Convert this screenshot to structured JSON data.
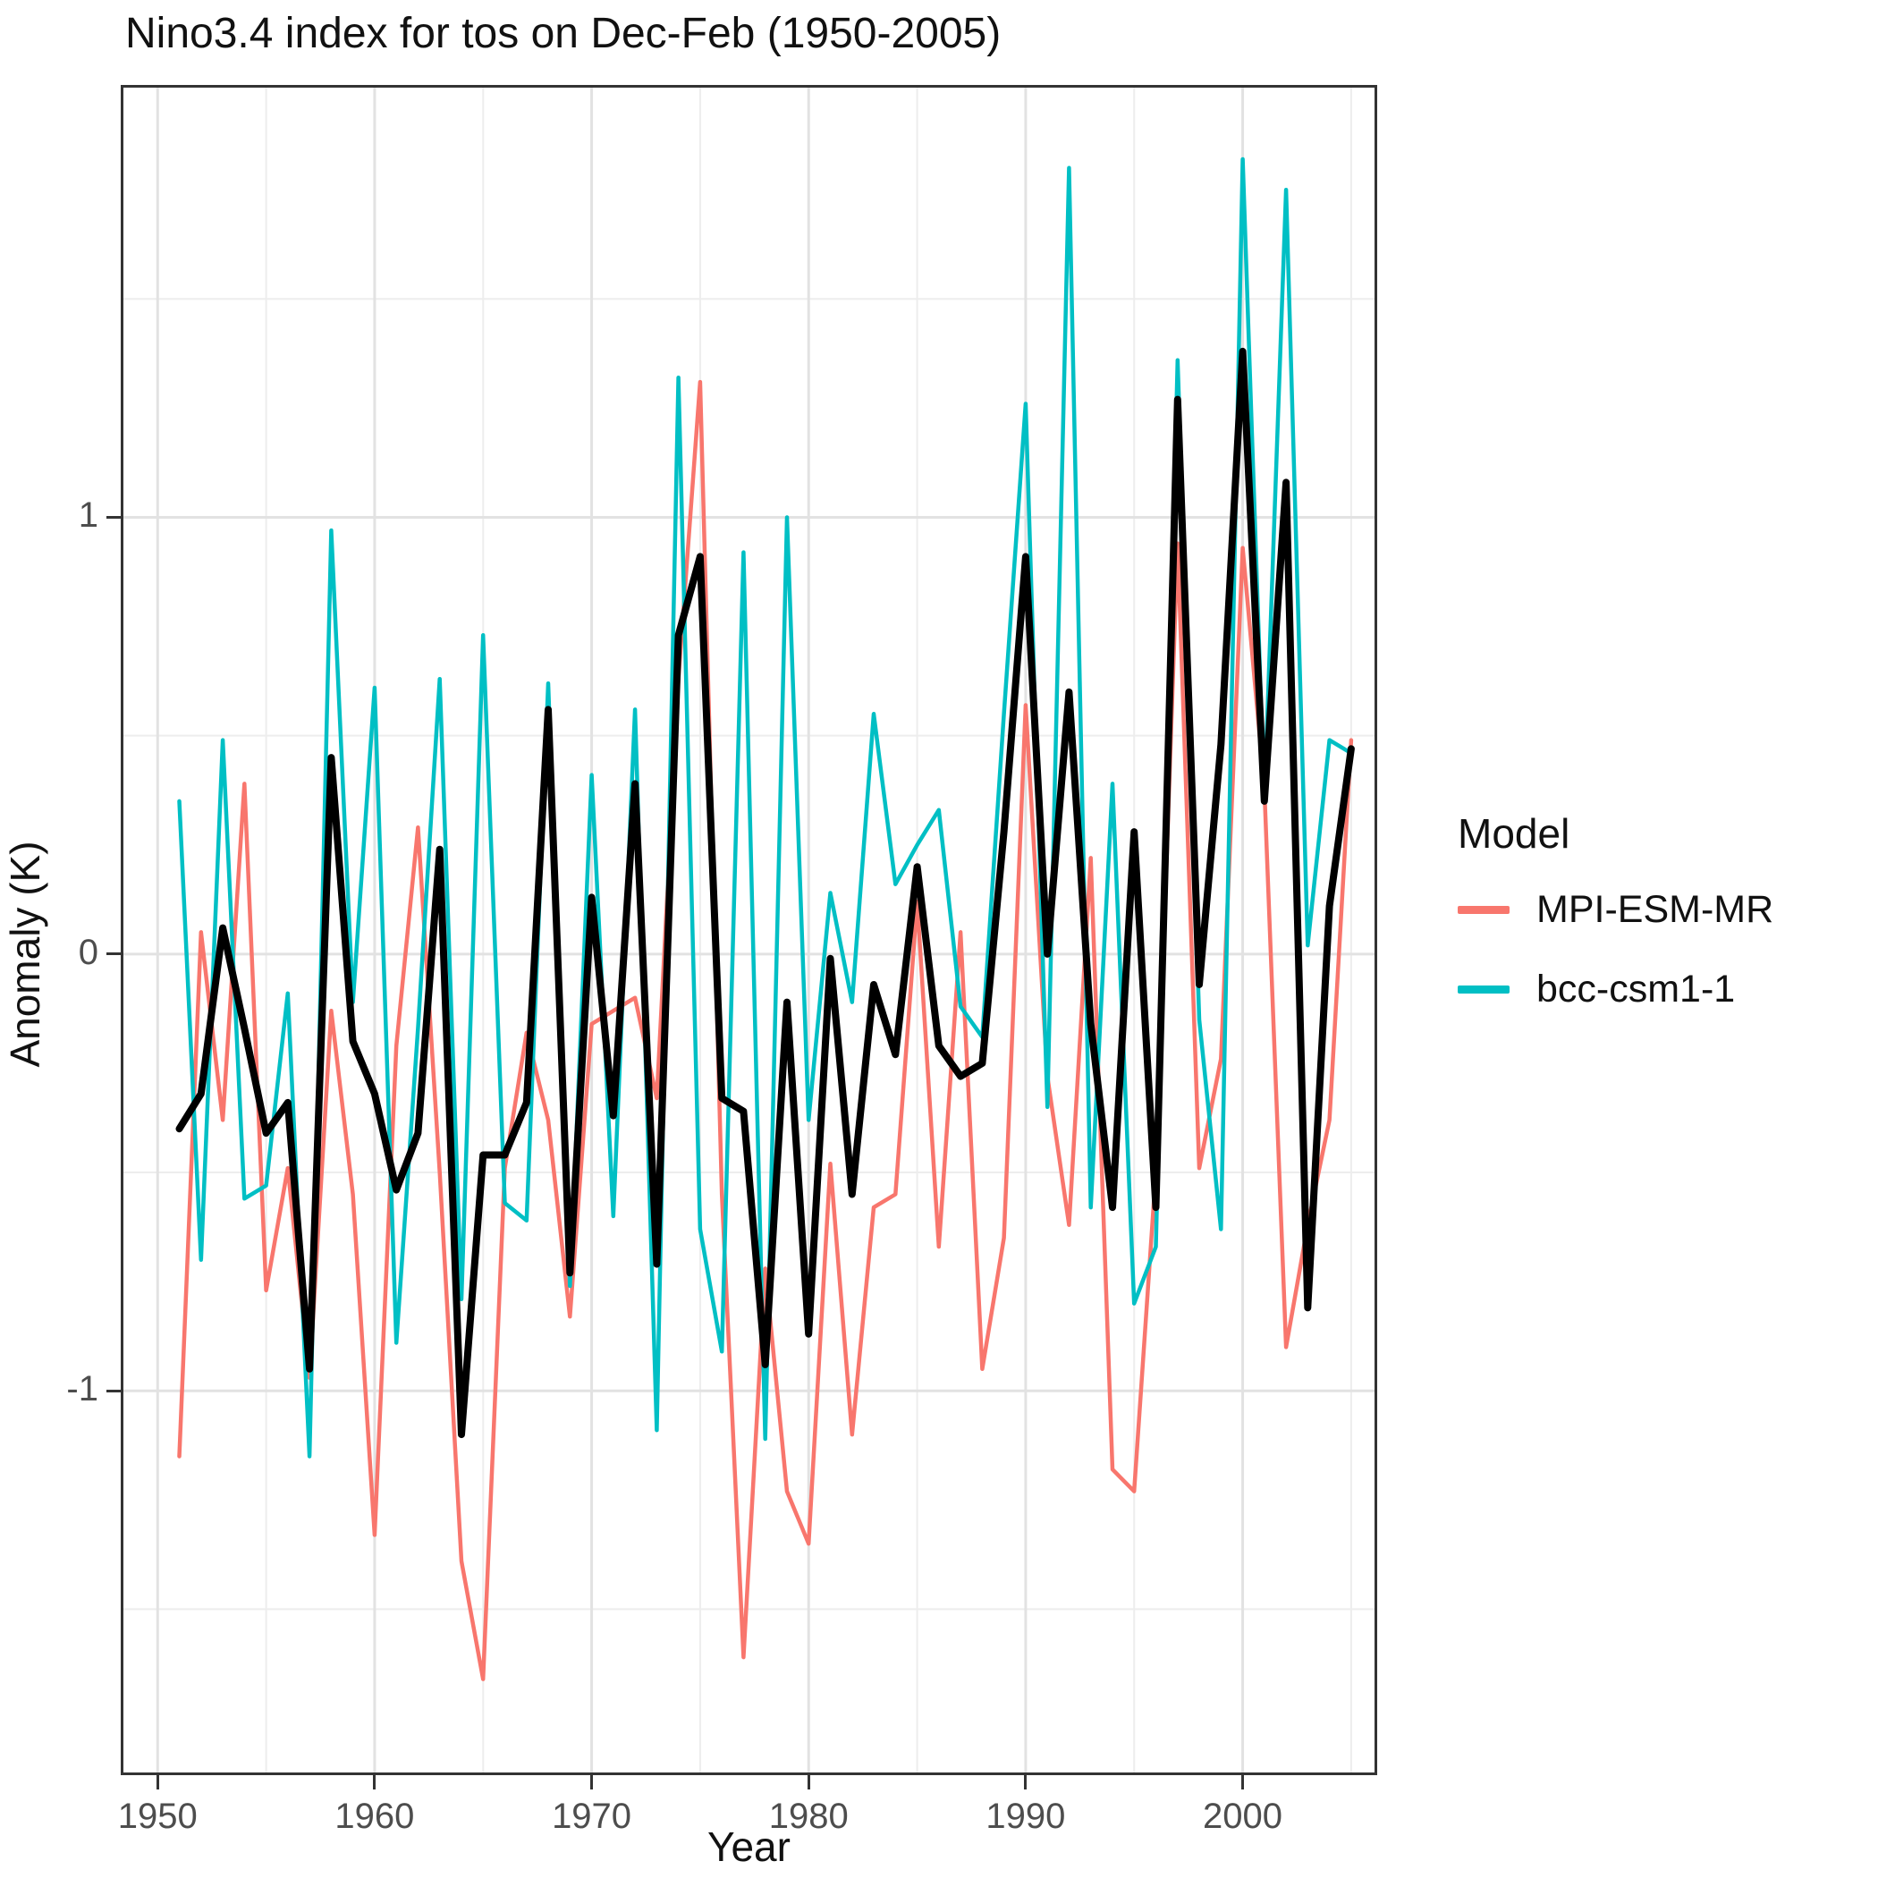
{
  "title": "Nino3.4 index for tos on Dec-Feb (1950-2005)",
  "axes": {
    "x": {
      "label": "Year",
      "ticks": [
        1950,
        1960,
        1970,
        1980,
        1990,
        2000
      ],
      "minor_ticks": [
        1955,
        1965,
        1975,
        1985,
        1995,
        2005
      ]
    },
    "y": {
      "label": "Anomaly (K)",
      "ticks": [
        1,
        0,
        -1
      ],
      "tick_labels": [
        "1",
        "0",
        "-1"
      ],
      "minor_ticks": [
        1.5,
        0.5,
        -0.5,
        -1.5
      ]
    }
  },
  "legend": {
    "title": "Model",
    "entries": [
      {
        "label": "MPI-ESM-MR",
        "color": "#F8766D"
      },
      {
        "label": "bcc-csm1-1",
        "color": "#00BFC4"
      }
    ]
  },
  "colors": {
    "panel_border": "#333333",
    "grid_major": "#e2e2e2",
    "grid_minor": "#ededed",
    "tick_label": "#4d4d4d",
    "text": "#111111",
    "background": "#ffffff"
  },
  "chart_data": {
    "type": "line",
    "title": "Nino3.4 index for tos on Dec-Feb (1950-2005)",
    "xlabel": "Year",
    "ylabel": "Anomaly (K)",
    "xlim": [
      1948.3,
      2006.2
    ],
    "ylim": [
      -1.88,
      1.99
    ],
    "grid": "major+minor",
    "legend_position": "right",
    "x": [
      1951,
      1952,
      1953,
      1954,
      1955,
      1956,
      1957,
      1958,
      1959,
      1960,
      1961,
      1962,
      1963,
      1964,
      1965,
      1966,
      1967,
      1968,
      1969,
      1970,
      1971,
      1972,
      1973,
      1974,
      1975,
      1976,
      1977,
      1978,
      1979,
      1980,
      1981,
      1982,
      1983,
      1984,
      1985,
      1986,
      1987,
      1988,
      1989,
      1990,
      1991,
      1992,
      1993,
      1994,
      1995,
      1996,
      1997,
      1998,
      1999,
      2000,
      2001,
      2002,
      2003,
      2004,
      2005
    ],
    "series": [
      {
        "name": "MPI-ESM-MR",
        "color": "#F8766D",
        "width": 4.5,
        "in_legend": true,
        "values": [
          -1.15,
          0.05,
          -0.38,
          0.39,
          -0.77,
          -0.49,
          -0.97,
          -0.13,
          -0.55,
          -1.33,
          -0.21,
          0.29,
          -0.5,
          -1.39,
          -1.66,
          -0.49,
          -0.18,
          -0.38,
          -0.83,
          -0.16,
          -0.13,
          -0.1,
          -0.33,
          0.63,
          1.31,
          -0.55,
          -1.61,
          -0.72,
          -1.23,
          -1.35,
          -0.48,
          -1.1,
          -0.58,
          -0.55,
          0.12,
          -0.67,
          0.05,
          -0.95,
          -0.65,
          0.57,
          -0.28,
          -0.62,
          0.22,
          -1.18,
          -1.23,
          -0.5,
          0.94,
          -0.49,
          -0.24,
          0.93,
          0.38,
          -0.9,
          -0.62,
          -0.38,
          0.49
        ]
      },
      {
        "name": "bcc-csm1-1",
        "color": "#00BFC4",
        "width": 4.5,
        "in_legend": true,
        "values": [
          0.35,
          -0.7,
          0.49,
          -0.56,
          -0.53,
          -0.09,
          -1.15,
          0.97,
          -0.11,
          0.61,
          -0.89,
          -0.17,
          0.63,
          -0.79,
          0.73,
          -0.57,
          -0.61,
          0.62,
          -0.76,
          0.41,
          -0.6,
          0.56,
          -1.09,
          1.32,
          -0.63,
          -0.91,
          0.92,
          -1.11,
          1.0,
          -0.38,
          0.14,
          -0.11,
          0.55,
          0.16,
          0.25,
          0.33,
          -0.12,
          -0.19,
          0.55,
          1.26,
          -0.35,
          1.8,
          -0.58,
          0.39,
          -0.8,
          -0.67,
          1.36,
          -0.15,
          -0.63,
          1.82,
          0.35,
          1.75,
          0.02,
          0.49,
          0.46
        ]
      },
      {
        "name": "(unlabeled black line)",
        "color": "#000000",
        "width": 8,
        "in_legend": false,
        "values": [
          -0.4,
          -0.32,
          0.06,
          -0.17,
          -0.41,
          -0.34,
          -0.95,
          0.45,
          -0.2,
          -0.32,
          -0.54,
          -0.41,
          0.24,
          -1.1,
          -0.46,
          -0.46,
          -0.34,
          0.56,
          -0.73,
          0.13,
          -0.37,
          0.39,
          -0.71,
          0.73,
          0.91,
          -0.33,
          -0.36,
          -0.94,
          -0.11,
          -0.87,
          -0.01,
          -0.55,
          -0.07,
          -0.23,
          0.2,
          -0.21,
          -0.28,
          -0.25,
          0.28,
          0.91,
          0.0,
          0.6,
          -0.16,
          -0.58,
          0.28,
          -0.58,
          1.27,
          -0.07,
          0.48,
          1.38,
          0.35,
          1.08,
          -0.81,
          0.11,
          0.47
        ]
      }
    ]
  }
}
